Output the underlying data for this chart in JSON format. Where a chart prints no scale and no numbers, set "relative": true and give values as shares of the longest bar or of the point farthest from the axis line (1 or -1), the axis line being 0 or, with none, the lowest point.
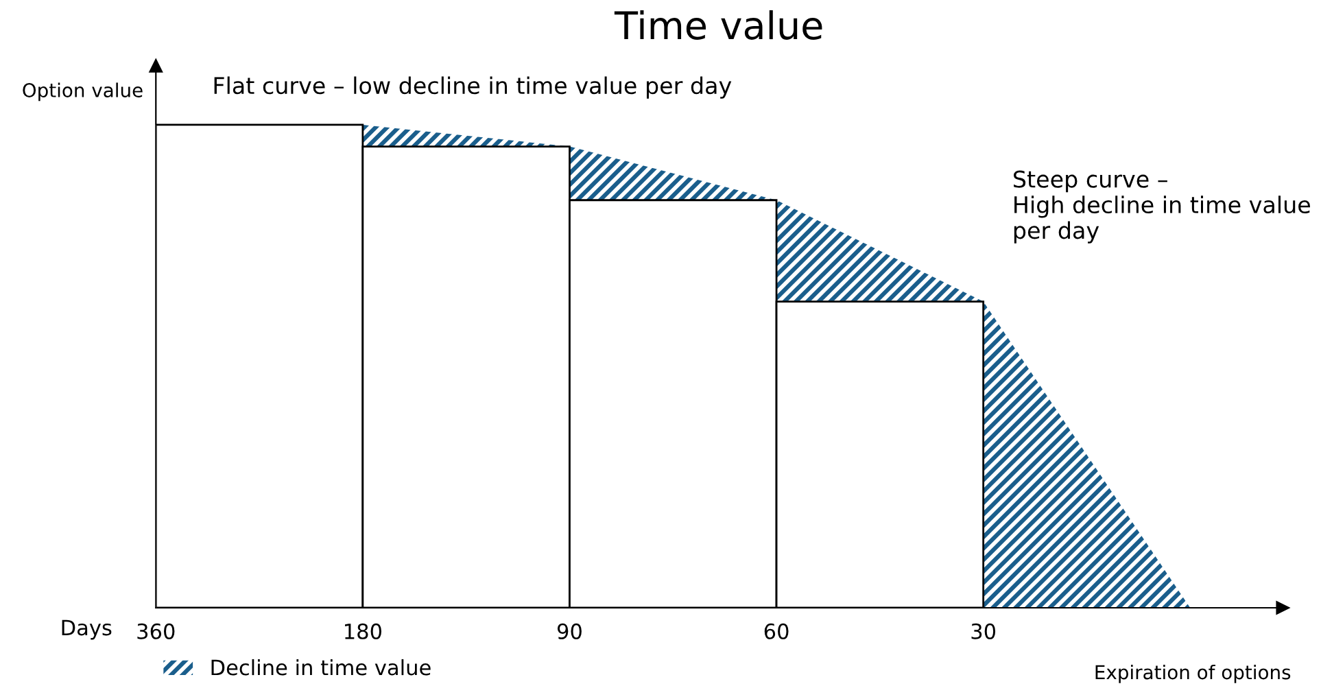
{
  "chart_data": {
    "type": "bar",
    "title": "Time value",
    "ylabel": "Option value",
    "xlabel": "Expiration of options",
    "relative": true,
    "legend": "bottom left",
    "categories": [
      "360",
      "180",
      "90",
      "60",
      "30",
      null
    ],
    "series": [
      {
        "color": "#ffffff",
        "values": [
          1,
          0.955,
          0.844,
          0.634,
          null,
          null
        ]
      },
      {
        "type": "area",
        "name": "Decline in time value",
        "color": "#1a5e8c",
        "values": [
          null,
          1,
          0.955,
          0.844,
          0.634,
          0
        ]
      }
    ],
    "annotations": [
      "Flat curve – low decline in time value per day",
      "Steep curve –\nHigh decline in time value\nper day",
      "Days"
    ]
  }
}
